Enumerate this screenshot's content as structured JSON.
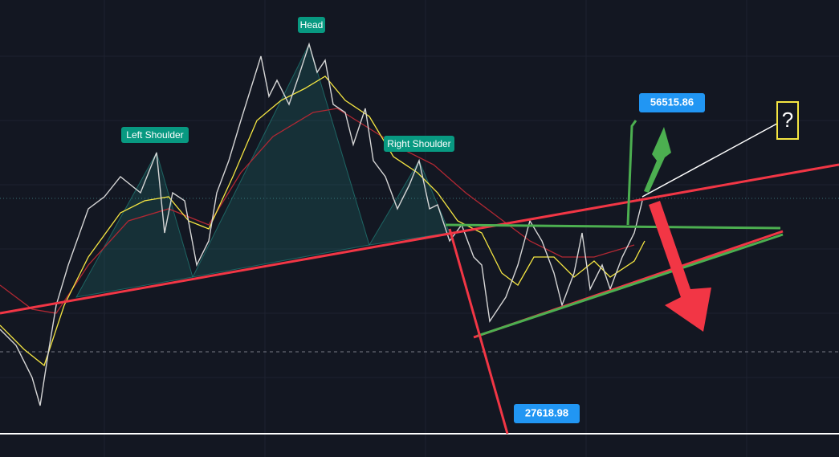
{
  "pattern_labels": {
    "left_shoulder": "Left Shoulder",
    "head": "Head",
    "right_shoulder": "Right Shoulder"
  },
  "price_labels": {
    "upper": "56515.86",
    "lower": "27618.98"
  },
  "question_mark": "?"
}
